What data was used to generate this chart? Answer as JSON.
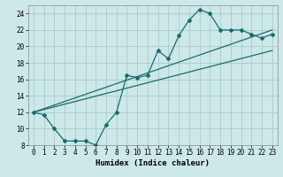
{
  "xlabel": "Humidex (Indice chaleur)",
  "bg_color": "#cce8e8",
  "grid_color": "#aacccc",
  "line_color": "#1a6b6b",
  "xmin": -0.5,
  "xmax": 23.5,
  "ymin": 8,
  "ymax": 25,
  "line1_x": [
    0,
    1,
    2,
    3,
    4,
    5,
    6,
    7,
    8,
    9,
    10,
    11,
    12,
    13,
    14,
    15,
    16,
    17,
    18,
    19,
    20,
    21,
    22,
    23
  ],
  "line1_y": [
    12,
    11.7,
    10.0,
    8.5,
    8.5,
    8.5,
    8.0,
    10.5,
    12.0,
    16.5,
    16.2,
    16.5,
    19.5,
    18.5,
    21.3,
    23.2,
    24.5,
    24.0,
    22.0,
    22.0,
    22.0,
    21.5,
    21.0,
    21.5
  ],
  "line2_x": [
    0,
    23
  ],
  "line2_y": [
    12,
    22.0
  ],
  "line3_x": [
    0,
    23
  ],
  "line3_y": [
    12,
    19.5
  ],
  "xticks": [
    0,
    1,
    2,
    3,
    4,
    5,
    6,
    7,
    8,
    9,
    10,
    11,
    12,
    13,
    14,
    15,
    16,
    17,
    18,
    19,
    20,
    21,
    22,
    23
  ],
  "yticks": [
    8,
    10,
    12,
    14,
    16,
    18,
    20,
    22,
    24
  ],
  "tick_fontsize": 5.5,
  "label_fontsize": 6.5
}
